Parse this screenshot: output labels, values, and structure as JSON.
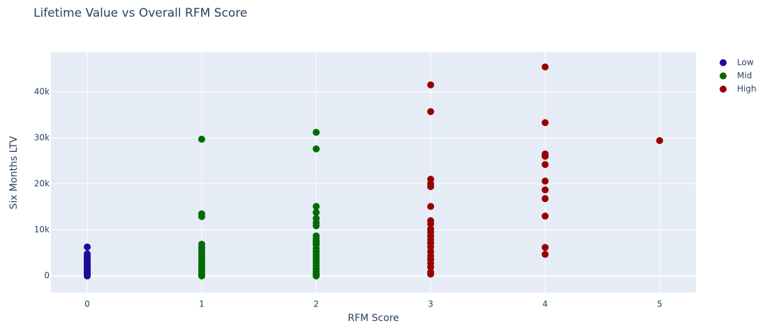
{
  "chart_data": {
    "type": "scatter",
    "title": "Lifetime Value vs Overall RFM Score",
    "x_label": "RFM Score",
    "y_label": "Six Months LTV",
    "xlim": [
      -0.317,
      5.317
    ],
    "ylim": [
      -3600,
      48600
    ],
    "xticks": [
      0,
      1,
      2,
      3,
      4,
      5
    ],
    "yticks": [
      0,
      {
        "value": 10000,
        "label": "10k"
      },
      {
        "value": 20000,
        "label": "20k"
      },
      {
        "value": 30000,
        "label": "30k"
      },
      {
        "value": 40000,
        "label": "40k"
      }
    ],
    "grid": true,
    "legend": "top-right",
    "series": [
      {
        "name": "Low",
        "color": "#1f0a99",
        "x": [
          0,
          0,
          0,
          0,
          0,
          0,
          0,
          0,
          0,
          0,
          0,
          0,
          0,
          0,
          0,
          0,
          0
        ],
        "values": [
          0,
          200,
          500,
          800,
          1000,
          1300,
          1600,
          2000,
          2300,
          2600,
          3000,
          3300,
          3700,
          4000,
          4400,
          4800,
          6300
        ]
      },
      {
        "name": "Mid",
        "color": "#036b03",
        "x": [
          1,
          1,
          1,
          1,
          1,
          1,
          1,
          1,
          1,
          1,
          1,
          1,
          1,
          1,
          1,
          1,
          1,
          2,
          2,
          2,
          2,
          2,
          2,
          2,
          2,
          2,
          2,
          2,
          2,
          2,
          2,
          2,
          2,
          2,
          2,
          2,
          2,
          2,
          2,
          2,
          2
        ],
        "values": [
          0,
          400,
          900,
          1400,
          2000,
          2600,
          3200,
          3800,
          4400,
          5000,
          5600,
          6200,
          6900,
          12900,
          13500,
          29700,
          200,
          0,
          500,
          1000,
          1600,
          2200,
          2800,
          3400,
          4000,
          4600,
          5300,
          6000,
          6800,
          7600,
          8700,
          10900,
          11600,
          12500,
          13800,
          15100,
          27600,
          31200,
          300,
          7300,
          8100
        ]
      },
      {
        "name": "High",
        "color": "#990000",
        "x": [
          3,
          3,
          3,
          3,
          3,
          3,
          3,
          3,
          3,
          3,
          3,
          3,
          3,
          3,
          3,
          3,
          3,
          3,
          3,
          3,
          3,
          4,
          4,
          4,
          4,
          4,
          4,
          4,
          4,
          4,
          4,
          4,
          5
        ],
        "values": [
          41500,
          35700,
          21000,
          20000,
          19400,
          15100,
          12000,
          11300,
          10200,
          9500,
          8700,
          7900,
          7100,
          6300,
          5300,
          4400,
          3600,
          2800,
          1900,
          800,
          400,
          45400,
          33300,
          26500,
          26000,
          24200,
          20600,
          18700,
          16800,
          13000,
          6200,
          4700,
          29400
        ]
      }
    ]
  }
}
